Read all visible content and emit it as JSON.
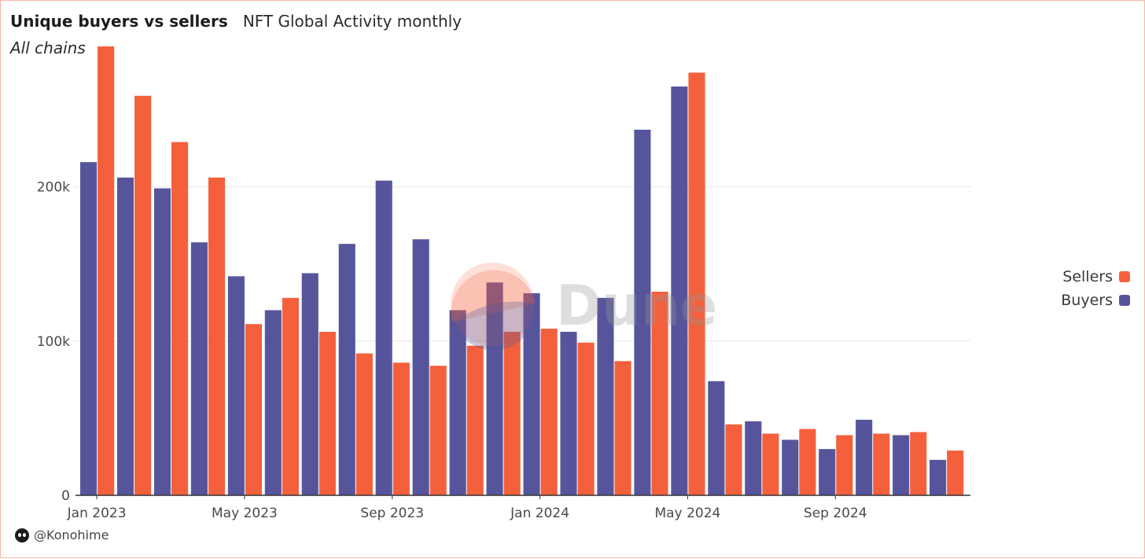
{
  "header": {
    "title": "Unique buyers vs sellers",
    "subtitle": "NFT Global Activity monthly",
    "italic_note": "All chains"
  },
  "watermark": {
    "text": "Dune"
  },
  "footer": {
    "author": "@Konohime"
  },
  "colors": {
    "buyers": "#56559c",
    "sellers": "#f4603c",
    "grid": "#e6e6e6",
    "axis": "#333333"
  },
  "chart_data": {
    "type": "bar",
    "categories": [
      "Jan 2023",
      "Feb 2023",
      "Mar 2023",
      "Apr 2023",
      "May 2023",
      "Jun 2023",
      "Jul 2023",
      "Aug 2023",
      "Sep 2023",
      "Oct 2023",
      "Nov 2023",
      "Dec 2023",
      "Jan 2024",
      "Feb 2024",
      "Mar 2024",
      "Apr 2024",
      "May 2024",
      "Jun 2024",
      "Jul 2024",
      "Aug 2024",
      "Sep 2024",
      "Oct 2024",
      "Nov 2024",
      "Dec 2024"
    ],
    "x_tick_labels": [
      "Jan 2023",
      "May 2023",
      "Sep 2023",
      "Jan 2024",
      "May 2024",
      "Sep 2024"
    ],
    "y_ticks": [
      0,
      100000,
      200000
    ],
    "y_tick_labels": [
      "0",
      "100k",
      "200k"
    ],
    "ylim": [
      0,
      290000
    ],
    "series": [
      {
        "name": "Buyers",
        "values": [
          216000,
          206000,
          199000,
          164000,
          142000,
          120000,
          144000,
          163000,
          204000,
          166000,
          120000,
          138000,
          131000,
          106000,
          128000,
          237000,
          265000,
          74000,
          48000,
          36000,
          30000,
          49000,
          39000,
          23000
        ]
      },
      {
        "name": "Sellers",
        "values": [
          291000,
          259000,
          229000,
          206000,
          111000,
          128000,
          106000,
          92000,
          86000,
          84000,
          97000,
          106000,
          108000,
          99000,
          87000,
          132000,
          274000,
          46000,
          40000,
          43000,
          39000,
          40000,
          41000,
          29000
        ]
      }
    ],
    "legend": {
      "position": "right",
      "entries": [
        "Sellers",
        "Buyers"
      ]
    },
    "grid": true
  }
}
